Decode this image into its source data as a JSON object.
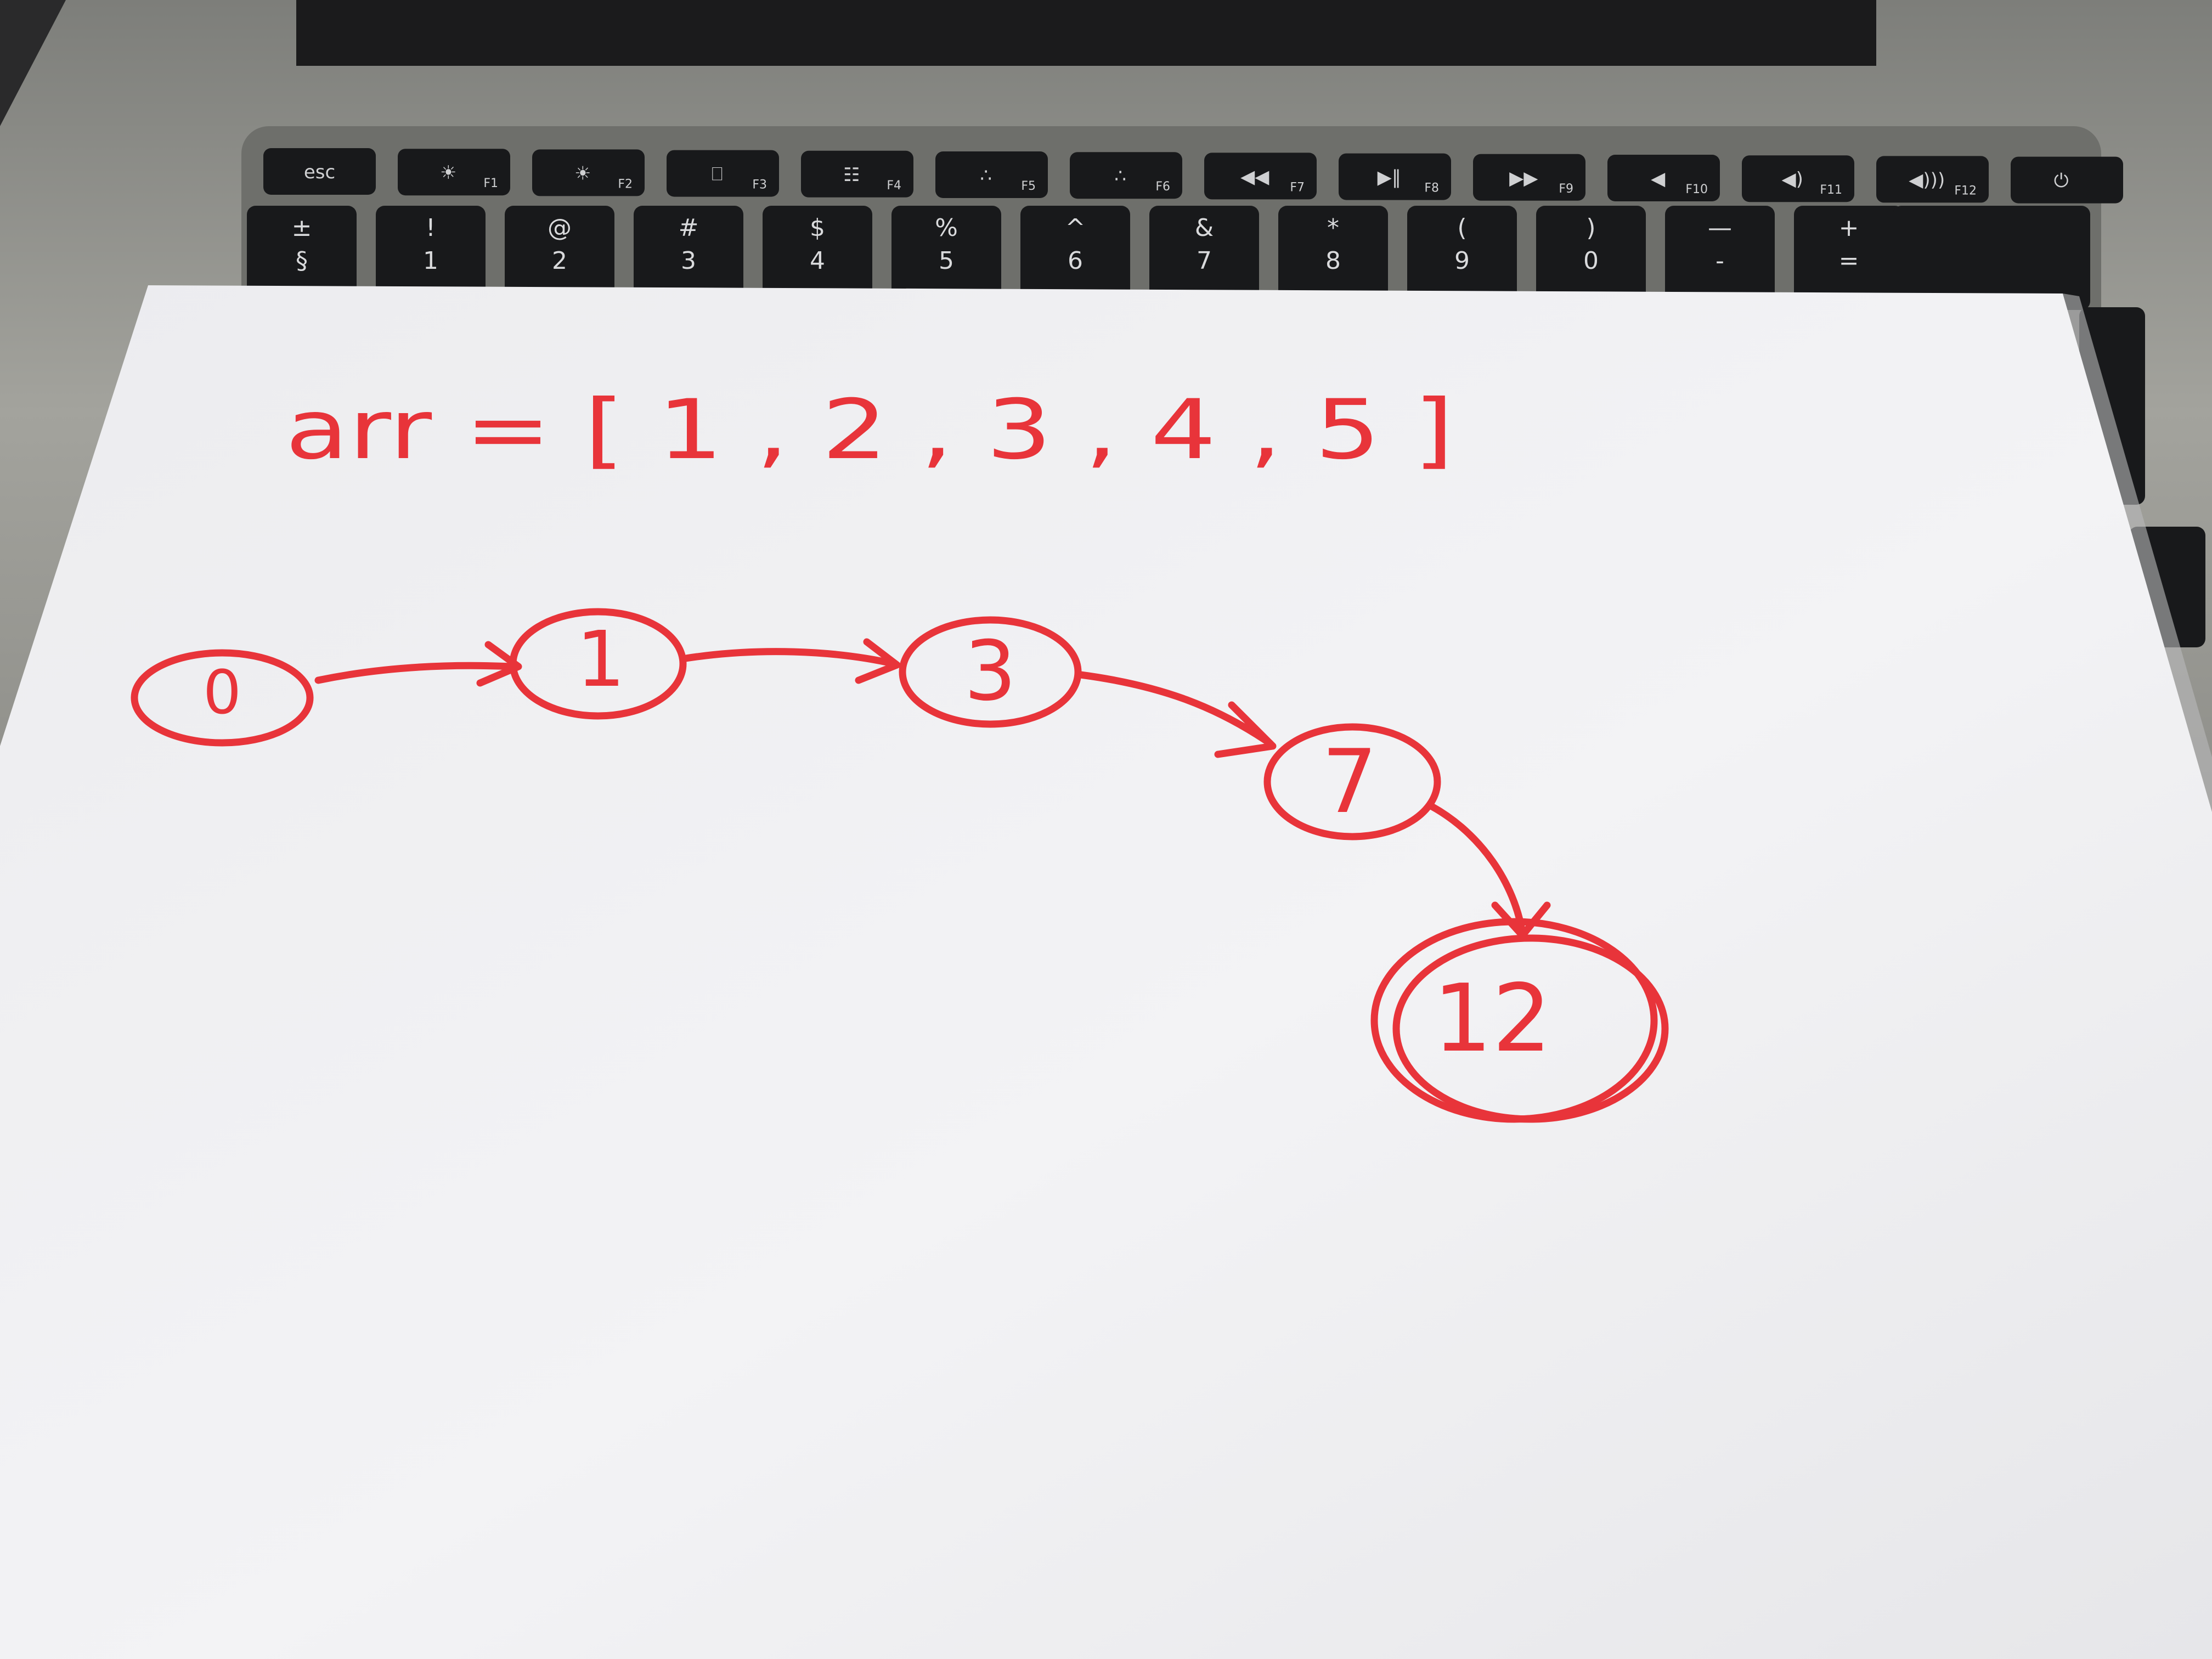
{
  "keyboard": {
    "function_row": [
      {
        "label": "esc",
        "glyph": ""
      },
      {
        "label": "F1",
        "glyph": "☀"
      },
      {
        "label": "F2",
        "glyph": "☀"
      },
      {
        "label": "F3",
        "glyph": "⎕"
      },
      {
        "label": "F4",
        "glyph": "☷"
      },
      {
        "label": "F5",
        "glyph": "∴"
      },
      {
        "label": "F6",
        "glyph": "∴"
      },
      {
        "label": "F7",
        "glyph": "◀◀"
      },
      {
        "label": "F8",
        "glyph": "▶‖"
      },
      {
        "label": "F9",
        "glyph": "▶▶"
      },
      {
        "label": "F10",
        "glyph": "◀"
      },
      {
        "label": "F11",
        "glyph": "◀)"
      },
      {
        "label": "F12",
        "glyph": "◀)))"
      },
      {
        "label": "",
        "glyph": "⏻"
      }
    ],
    "number_row": [
      {
        "top": "±",
        "bottom": "§"
      },
      {
        "top": "!",
        "bottom": "1"
      },
      {
        "top": "@",
        "bottom": "2"
      },
      {
        "top": "#",
        "bottom": "3"
      },
      {
        "top": "$",
        "bottom": "4"
      },
      {
        "top": "%",
        "bottom": "5"
      },
      {
        "top": "^",
        "bottom": "6"
      },
      {
        "top": "&",
        "bottom": "7"
      },
      {
        "top": "*",
        "bottom": "8"
      },
      {
        "top": "(",
        "bottom": "9"
      },
      {
        "top": ")",
        "bottom": "0"
      },
      {
        "top": "—",
        "bottom": "-"
      },
      {
        "top": "+",
        "bottom": "="
      }
    ]
  },
  "paper": {
    "array_line": "arr = [ 1 , 2 , 3 , 4 , 5 ]",
    "nodes": [
      {
        "id": "n0",
        "label": "0"
      },
      {
        "id": "n1",
        "label": "1"
      },
      {
        "id": "n3",
        "label": "3"
      },
      {
        "id": "n7",
        "label": "7"
      },
      {
        "id": "n12",
        "label": "12",
        "double_circle": true
      }
    ],
    "edges": [
      {
        "from": "n0",
        "to": "n1"
      },
      {
        "from": "n1",
        "to": "n3"
      },
      {
        "from": "n3",
        "to": "n7"
      },
      {
        "from": "n7",
        "to": "n12"
      }
    ]
  },
  "colors": {
    "ink": "#e8343a",
    "paper": "#f2f2f4",
    "keycap": "#1a1b1d",
    "laptop_body": "#9b9b95"
  }
}
